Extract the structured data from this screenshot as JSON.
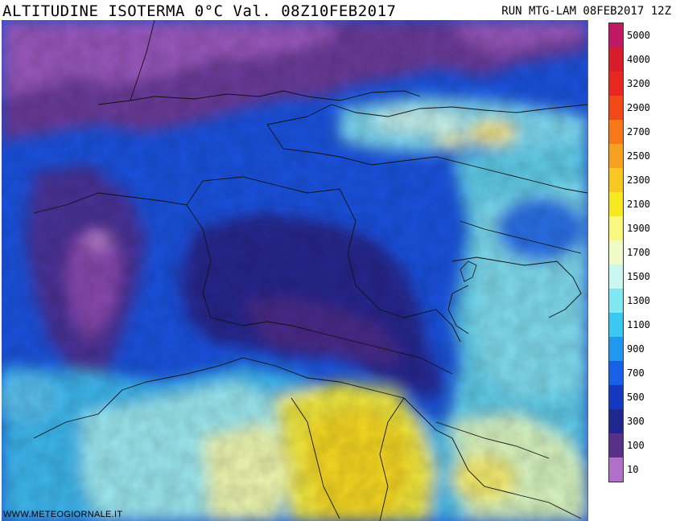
{
  "header": {
    "title": "ALTITUDINE ISOTERMA 0°C Val. 08Z10FEB2017",
    "run": "RUN MTG-LAM 08FEB2017 12Z"
  },
  "watermark": "WWW.METEOGIORNALE.IT",
  "legend": {
    "items": [
      {
        "label": "5000",
        "color": "#c01862"
      },
      {
        "label": "4000",
        "color": "#d81c2c"
      },
      {
        "label": "3200",
        "color": "#e82820"
      },
      {
        "label": "2900",
        "color": "#f04818"
      },
      {
        "label": "2700",
        "color": "#f87818"
      },
      {
        "label": "2500",
        "color": "#f8a020"
      },
      {
        "label": "2300",
        "color": "#f8c820"
      },
      {
        "label": "2100",
        "color": "#f8e820"
      },
      {
        "label": "1900",
        "color": "#f8f880"
      },
      {
        "label": "1700",
        "color": "#f0fcc8"
      },
      {
        "label": "1500",
        "color": "#c8f8f0"
      },
      {
        "label": "1300",
        "color": "#80e8f0"
      },
      {
        "label": "1100",
        "color": "#38c8f0"
      },
      {
        "label": "900",
        "color": "#2098f0"
      },
      {
        "label": "700",
        "color": "#1860e8"
      },
      {
        "label": "500",
        "color": "#1438c0"
      },
      {
        "label": "300",
        "color": "#202890"
      },
      {
        "label": "100",
        "color": "#583088"
      },
      {
        "label": "10",
        "color": "#b070c8"
      }
    ]
  }
}
